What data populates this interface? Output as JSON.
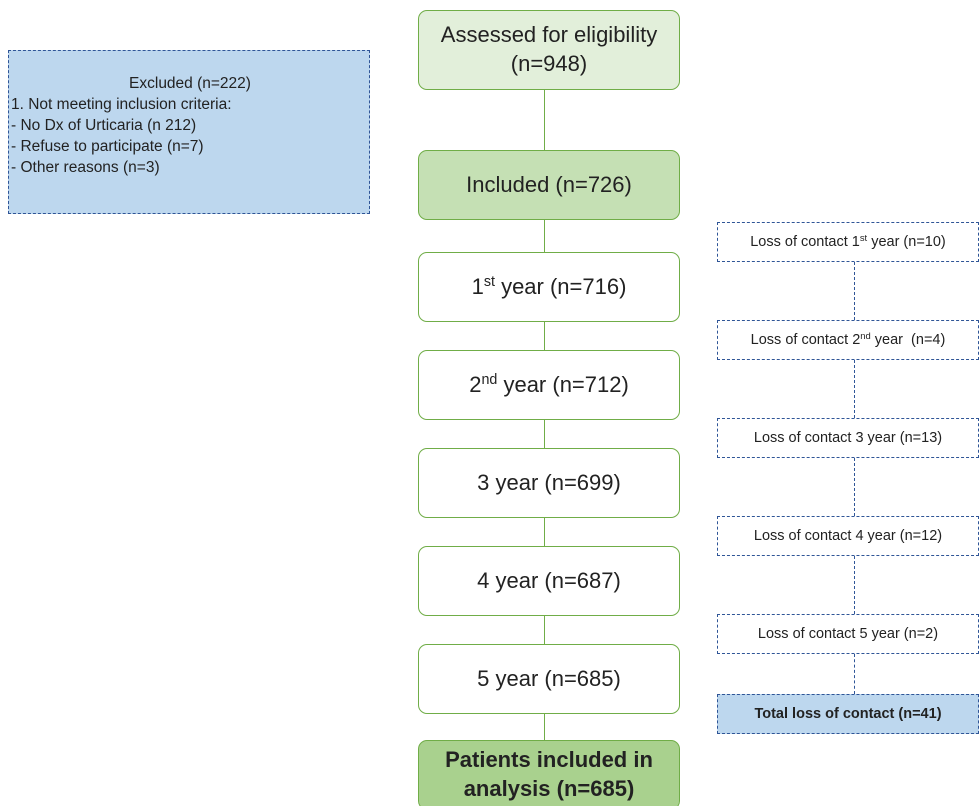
{
  "excluded": {
    "title": "Excluded (n=222)",
    "lines": [
      "1. Not meeting inclusion criteria:",
      "- No Dx of Urticaria (n 212)",
      "- Refuse to participate (n=7)",
      "- Other reasons (n=3)"
    ]
  },
  "main_steps": [
    {
      "label": [
        {
          "text": "Assessed for eligibility (n=948)"
        }
      ]
    },
    {
      "label": [
        {
          "text": "Included (n=726)"
        }
      ]
    },
    {
      "label": [
        {
          "text": "1"
        },
        {
          "text": "st",
          "sup": true
        },
        {
          "text": " year (n=716)"
        }
      ]
    },
    {
      "label": [
        {
          "text": "2"
        },
        {
          "text": "nd",
          "sup": true
        },
        {
          "text": " year (n=712)"
        }
      ]
    },
    {
      "label": [
        {
          "text": "3 year (n=699)"
        }
      ]
    },
    {
      "label": [
        {
          "text": "4 year (n=687)"
        }
      ]
    },
    {
      "label": [
        {
          "text": "5 year (n=685)"
        }
      ]
    },
    {
      "label": [
        {
          "text": "Patients included in analysis (n=685)"
        }
      ]
    }
  ],
  "losses": [
    {
      "label": [
        {
          "text": "Loss of contact 1"
        },
        {
          "text": "st",
          "sup": true
        },
        {
          "text": " year (n=10)"
        }
      ]
    },
    {
      "label": [
        {
          "text": "Loss of contact 2"
        },
        {
          "text": "nd",
          "sup": true
        },
        {
          "text": " year  (n=4)"
        }
      ]
    },
    {
      "label": [
        {
          "text": "Loss of contact 3 year (n=13)"
        }
      ]
    },
    {
      "label": [
        {
          "text": "Loss of contact 4 year (n=12)"
        }
      ]
    },
    {
      "label": [
        {
          "text": "Loss of contact 5 year (n=2)"
        }
      ]
    },
    {
      "label": [
        {
          "text": "Total loss of contact (n=41)"
        }
      ]
    }
  ]
}
